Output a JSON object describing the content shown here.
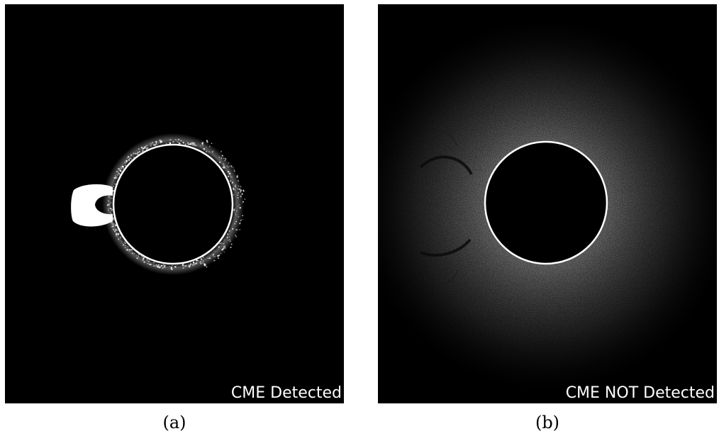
{
  "panels": [
    {
      "label": "CME Detected",
      "caption": "(a)"
    },
    {
      "label": "CME NOT Detected",
      "caption": "(b)"
    }
  ]
}
